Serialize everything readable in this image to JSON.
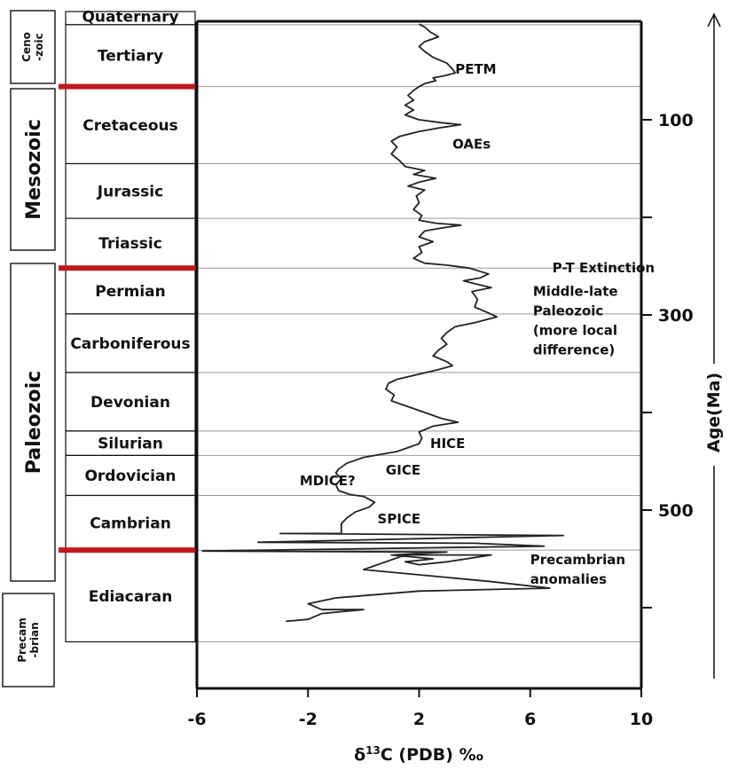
{
  "colors": {
    "boundary_red": "#c0191c",
    "grid_gray": "#9a9a9a",
    "curve": "#222222"
  },
  "eras": [
    {
      "label": "Ceno\n-zoic",
      "lines": [
        "Ceno",
        "-zoic"
      ],
      "from": 0,
      "to": 66,
      "small": true
    },
    {
      "label": "Mesozoic",
      "lines": [
        "Mesozoic"
      ],
      "from": 66,
      "to": 252,
      "small": false
    },
    {
      "label": "Paleozoic",
      "lines": [
        "Paleozoic"
      ],
      "from": 252,
      "to": 541,
      "small": false
    },
    {
      "label": "Precam\n-brian",
      "lines": [
        "Precam",
        "-brian"
      ],
      "from": 541,
      "to": 635,
      "small": true
    }
  ],
  "periods": [
    {
      "label": "Quaternary",
      "from": 0,
      "to": 2.6
    },
    {
      "label": "Tertiary",
      "from": 2.6,
      "to": 66
    },
    {
      "label": "Cretaceous",
      "from": 66,
      "to": 145
    },
    {
      "label": "Jurassic",
      "from": 145,
      "to": 201
    },
    {
      "label": "Triassic",
      "from": 201,
      "to": 252
    },
    {
      "label": "Permian",
      "from": 252,
      "to": 299
    },
    {
      "label": "Carboniferous",
      "from": 299,
      "to": 359
    },
    {
      "label": "Devonian",
      "from": 359,
      "to": 419
    },
    {
      "label": "Silurian",
      "from": 419,
      "to": 444
    },
    {
      "label": "Ordovician",
      "from": 444,
      "to": 485
    },
    {
      "label": "Cambrian",
      "from": 485,
      "to": 541
    },
    {
      "label": "Ediacaran",
      "from": 541,
      "to": 635
    }
  ],
  "chart_data": {
    "type": "line",
    "title": "",
    "xlabel": "δ13C (PDB) ‰",
    "ylabel": "Age(Ma)",
    "xlim": [
      -6,
      10
    ],
    "ylim": [
      0,
      635
    ],
    "y_inverted": true,
    "grid": "horizontal lines at period boundaries",
    "x_ticks": [
      -6,
      -2,
      2,
      6,
      10
    ],
    "x_tick_labels": [
      "-6",
      "-2",
      "2",
      "6",
      "10"
    ],
    "y_ticks": [
      100,
      200,
      300,
      400,
      500,
      600
    ],
    "y_tick_labels": [
      "100",
      "",
      "300",
      "",
      "500",
      ""
    ],
    "mass_extinction_boundaries_ma": [
      66,
      252,
      541
    ],
    "series": [
      {
        "points": [
          {
            "x": 2.0,
            "y": 2
          },
          {
            "x": 2.2,
            "y": 5
          },
          {
            "x": 2.4,
            "y": 10
          },
          {
            "x": 2.7,
            "y": 15
          },
          {
            "x": 2.2,
            "y": 20
          },
          {
            "x": 2.0,
            "y": 25
          },
          {
            "x": 2.2,
            "y": 30
          },
          {
            "x": 2.5,
            "y": 36
          },
          {
            "x": 3.0,
            "y": 42
          },
          {
            "x": 3.2,
            "y": 48
          },
          {
            "x": 3.3,
            "y": 52
          },
          {
            "x": 2.9,
            "y": 55
          },
          {
            "x": 2.5,
            "y": 57
          },
          {
            "x": 2.6,
            "y": 60
          },
          {
            "x": 2.2,
            "y": 63
          },
          {
            "x": 2.0,
            "y": 66
          },
          {
            "x": 1.8,
            "y": 70
          },
          {
            "x": 1.6,
            "y": 75
          },
          {
            "x": 1.8,
            "y": 80
          },
          {
            "x": 1.5,
            "y": 85
          },
          {
            "x": 1.8,
            "y": 90
          },
          {
            "x": 1.5,
            "y": 95
          },
          {
            "x": 2.0,
            "y": 100
          },
          {
            "x": 2.8,
            "y": 103
          },
          {
            "x": 3.5,
            "y": 105
          },
          {
            "x": 2.8,
            "y": 108
          },
          {
            "x": 2.0,
            "y": 112
          },
          {
            "x": 1.3,
            "y": 117
          },
          {
            "x": 1.0,
            "y": 122
          },
          {
            "x": 1.2,
            "y": 128
          },
          {
            "x": 1.0,
            "y": 135
          },
          {
            "x": 1.3,
            "y": 142
          },
          {
            "x": 1.5,
            "y": 148
          },
          {
            "x": 2.2,
            "y": 152
          },
          {
            "x": 1.8,
            "y": 156
          },
          {
            "x": 2.6,
            "y": 160
          },
          {
            "x": 2.0,
            "y": 164
          },
          {
            "x": 1.6,
            "y": 168
          },
          {
            "x": 2.2,
            "y": 172
          },
          {
            "x": 1.9,
            "y": 178
          },
          {
            "x": 2.0,
            "y": 185
          },
          {
            "x": 1.8,
            "y": 192
          },
          {
            "x": 2.1,
            "y": 198
          },
          {
            "x": 2.0,
            "y": 203
          },
          {
            "x": 2.6,
            "y": 206
          },
          {
            "x": 3.5,
            "y": 208
          },
          {
            "x": 2.8,
            "y": 211
          },
          {
            "x": 2.2,
            "y": 214
          },
          {
            "x": 2.0,
            "y": 220
          },
          {
            "x": 2.5,
            "y": 225
          },
          {
            "x": 2.0,
            "y": 230
          },
          {
            "x": 2.1,
            "y": 236
          },
          {
            "x": 1.8,
            "y": 242
          },
          {
            "x": 2.2,
            "y": 247
          },
          {
            "x": 3.0,
            "y": 249
          },
          {
            "x": 3.8,
            "y": 252
          },
          {
            "x": 4.5,
            "y": 258
          },
          {
            "x": 4.2,
            "y": 262
          },
          {
            "x": 3.6,
            "y": 265
          },
          {
            "x": 4.0,
            "y": 268
          },
          {
            "x": 4.6,
            "y": 272
          },
          {
            "x": 3.9,
            "y": 276
          },
          {
            "x": 4.1,
            "y": 284
          },
          {
            "x": 4.0,
            "y": 292
          },
          {
            "x": 4.5,
            "y": 298
          },
          {
            "x": 4.8,
            "y": 302
          },
          {
            "x": 4.0,
            "y": 308
          },
          {
            "x": 3.3,
            "y": 312
          },
          {
            "x": 3.0,
            "y": 318
          },
          {
            "x": 2.8,
            "y": 324
          },
          {
            "x": 3.0,
            "y": 330
          },
          {
            "x": 2.7,
            "y": 336
          },
          {
            "x": 2.5,
            "y": 342
          },
          {
            "x": 3.0,
            "y": 348
          },
          {
            "x": 3.2,
            "y": 352
          },
          {
            "x": 2.7,
            "y": 356
          },
          {
            "x": 1.8,
            "y": 362
          },
          {
            "x": 1.2,
            "y": 366
          },
          {
            "x": 0.9,
            "y": 370
          },
          {
            "x": 0.8,
            "y": 376
          },
          {
            "x": 1.1,
            "y": 382
          },
          {
            "x": 1.0,
            "y": 388
          },
          {
            "x": 1.6,
            "y": 394
          },
          {
            "x": 2.2,
            "y": 400
          },
          {
            "x": 2.8,
            "y": 406
          },
          {
            "x": 3.4,
            "y": 410
          },
          {
            "x": 2.5,
            "y": 414
          },
          {
            "x": 2.0,
            "y": 420
          },
          {
            "x": 2.1,
            "y": 426
          },
          {
            "x": 2.0,
            "y": 432
          },
          {
            "x": 1.6,
            "y": 436
          },
          {
            "x": 1.2,
            "y": 440
          },
          {
            "x": 0.0,
            "y": 446
          },
          {
            "x": -0.6,
            "y": 452
          },
          {
            "x": -0.9,
            "y": 458
          },
          {
            "x": -1.0,
            "y": 462
          },
          {
            "x": -0.8,
            "y": 468
          },
          {
            "x": -1.0,
            "y": 474
          },
          {
            "x": -0.9,
            "y": 480
          },
          {
            "x": -0.5,
            "y": 484
          },
          {
            "x": 0.0,
            "y": 486
          },
          {
            "x": 0.4,
            "y": 492
          },
          {
            "x": 0.2,
            "y": 497
          },
          {
            "x": -0.3,
            "y": 502
          },
          {
            "x": -0.6,
            "y": 508
          },
          {
            "x": -0.8,
            "y": 514
          },
          {
            "x": -0.8,
            "y": 520
          },
          {
            "x": -0.8,
            "y": 524
          },
          {
            "x": -3.0,
            "y": 524
          },
          {
            "x": 7.2,
            "y": 526
          },
          {
            "x": -3.8,
            "y": 533
          },
          {
            "x": 4.0,
            "y": 534
          },
          {
            "x": 6.5,
            "y": 537
          },
          {
            "x": -5.8,
            "y": 542
          },
          {
            "x": 3.0,
            "y": 543
          },
          {
            "x": 1.0,
            "y": 546
          },
          {
            "x": 2.5,
            "y": 550
          },
          {
            "x": 1.5,
            "y": 553
          },
          {
            "x": 2.0,
            "y": 556
          },
          {
            "x": 3.0,
            "y": 553
          },
          {
            "x": 4.6,
            "y": 546
          },
          {
            "x": 1.5,
            "y": 546
          },
          {
            "x": 0.0,
            "y": 561
          },
          {
            "x": 4.5,
            "y": 573
          },
          {
            "x": 6.7,
            "y": 580
          },
          {
            "x": 2.0,
            "y": 583
          },
          {
            "x": -1.0,
            "y": 590
          },
          {
            "x": -2.0,
            "y": 596
          },
          {
            "x": -1.5,
            "y": 602
          },
          {
            "x": 0.0,
            "y": 602
          },
          {
            "x": -1.5,
            "y": 606
          },
          {
            "x": -2.0,
            "y": 612
          },
          {
            "x": -2.8,
            "y": 614
          }
        ]
      }
    ],
    "annotations": [
      {
        "text": "PETM",
        "x": 3.3,
        "y": 48
      },
      {
        "text": "OAEs",
        "x": 3.2,
        "y": 125
      },
      {
        "text": "P-T Extinction",
        "x": 6.8,
        "y": 252
      },
      {
        "text": "Middle-late",
        "x": 6.1,
        "y": 276
      },
      {
        "text": "Paleozoic",
        "x": 6.1,
        "y": 296
      },
      {
        "text": "(more local",
        "x": 6.1,
        "y": 316
      },
      {
        "text": "difference)",
        "x": 6.1,
        "y": 336
      },
      {
        "text": "HICE",
        "x": 2.4,
        "y": 432
      },
      {
        "text": "GICE",
        "x": 0.8,
        "y": 459
      },
      {
        "text": "MDICE?",
        "x": -2.3,
        "y": 470
      },
      {
        "text": "SPICE",
        "x": 0.5,
        "y": 509
      },
      {
        "text": "Precambrian",
        "x": 6.0,
        "y": 551
      },
      {
        "text": "anomalies",
        "x": 6.0,
        "y": 571
      }
    ]
  }
}
